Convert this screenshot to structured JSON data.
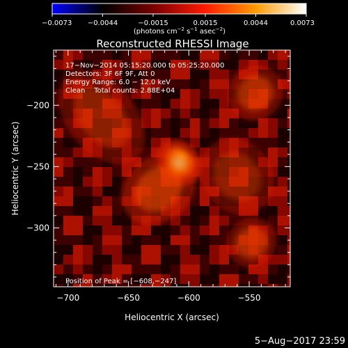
{
  "chart_data": {
    "type": "heatmap",
    "title": "Reconstructed RHESSI Image",
    "xlabel": "Heliocentric X (arcsec)",
    "ylabel": "Heliocentric Y (arcsec)",
    "xlim": [
      -712,
      -516
    ],
    "ylim": [
      -348,
      -155
    ],
    "x_ticks": [
      -700,
      -650,
      -600,
      -550
    ],
    "x_tick_labels": [
      "−700",
      "−650",
      "−600",
      "−550"
    ],
    "y_ticks": [
      -200,
      -250,
      -300
    ],
    "y_tick_labels": [
      "−200",
      "−250",
      "−300"
    ],
    "colorbar": {
      "min": -0.0073,
      "max": 0.0073,
      "ticks": [
        -0.0073,
        -0.0044,
        -0.0015,
        0.0015,
        0.0044,
        0.0073
      ],
      "tick_labels": [
        "−0.0073",
        "−0.0044",
        "−0.0015",
        "0.0015",
        "0.0044",
        "0.0073"
      ],
      "units_main": "(photons cm",
      "units_exp1": "−2",
      "units_mid": " s",
      "units_exp2": "−1",
      "units_mid2": " asec",
      "units_exp3": "−2",
      "units_end": ")",
      "colors": [
        "#0000ff",
        "#000000",
        "#7a0000",
        "#ff1a00",
        "#ff9a00",
        "#ffffff"
      ]
    },
    "annotations": [
      "17−Nov−2014 05:15:20.000 to 05:25:20.000",
      "Detectors: 3F 6F 9F, Att 0",
      "Energy Range: 6.0 − 12.0 keV",
      "Clean    Total counts: 2.88E+04"
    ],
    "peak_label": "Position of Peak = [−608,−247]",
    "peak": {
      "x": -608,
      "y": -247
    },
    "sources": [
      {
        "x": -608,
        "y": -247,
        "intensity": 1.0,
        "sx": 7,
        "sy": 9
      },
      {
        "x": -625,
        "y": -268,
        "intensity": 0.45,
        "sx": 14,
        "sy": 12
      },
      {
        "x": -545,
        "y": -190,
        "intensity": 0.4,
        "sx": 10,
        "sy": 10
      },
      {
        "x": -548,
        "y": -312,
        "intensity": 0.4,
        "sx": 9,
        "sy": 9
      },
      {
        "x": -672,
        "y": -210,
        "intensity": 0.28,
        "sx": 12,
        "sy": 20
      },
      {
        "x": -560,
        "y": -258,
        "intensity": 0.25,
        "sx": 12,
        "sy": 15
      }
    ]
  },
  "footer_timestamp": "5−Aug−2017 23:59"
}
